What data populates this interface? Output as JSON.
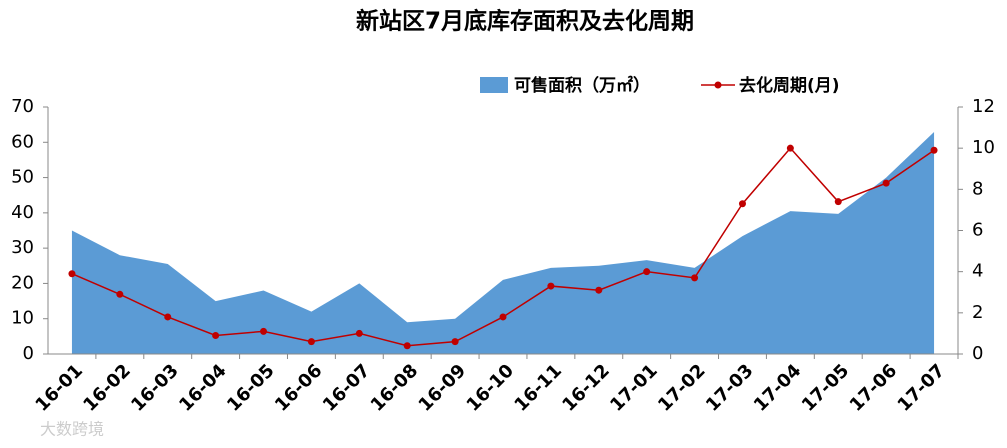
{
  "chart_data": {
    "type": "area",
    "title": "新站区7月底库存面积及去化周期",
    "categories": [
      "16-01",
      "16-02",
      "16-03",
      "16-04",
      "16-05",
      "16-06",
      "16-07",
      "16-08",
      "16-09",
      "16-10",
      "16-11",
      "16-12",
      "17-01",
      "17-02",
      "17-03",
      "17-04",
      "17-05",
      "17-06",
      "17-07"
    ],
    "series": [
      {
        "name": "可售面积（万㎡）",
        "type": "area",
        "color": "#5b9bd5",
        "values": [
          35,
          28,
          25.5,
          15,
          18,
          12,
          20,
          9,
          10,
          21,
          24.4,
          25,
          26.6,
          24.4,
          33.4,
          40.5,
          39.7,
          50,
          62.9
        ]
      },
      {
        "name": "去化周期(月)",
        "type": "line",
        "axis": "y2",
        "color": "#c00000",
        "values": [
          3.9,
          2.9,
          1.8,
          0.9,
          1.1,
          0.6,
          1.0,
          0.4,
          0.6,
          1.8,
          3.3,
          3.1,
          4.0,
          3.7,
          7.3,
          10.0,
          7.4,
          8.3,
          9.9
        ]
      }
    ],
    "ylim": [
      0,
      70
    ],
    "yticks": [
      0,
      10,
      20,
      30,
      40,
      50,
      60,
      70
    ],
    "y2lim": [
      0,
      12
    ],
    "y2ticks": [
      0,
      2,
      4,
      6,
      8,
      10,
      12
    ],
    "grid": false,
    "watermark": "大数跨境"
  }
}
